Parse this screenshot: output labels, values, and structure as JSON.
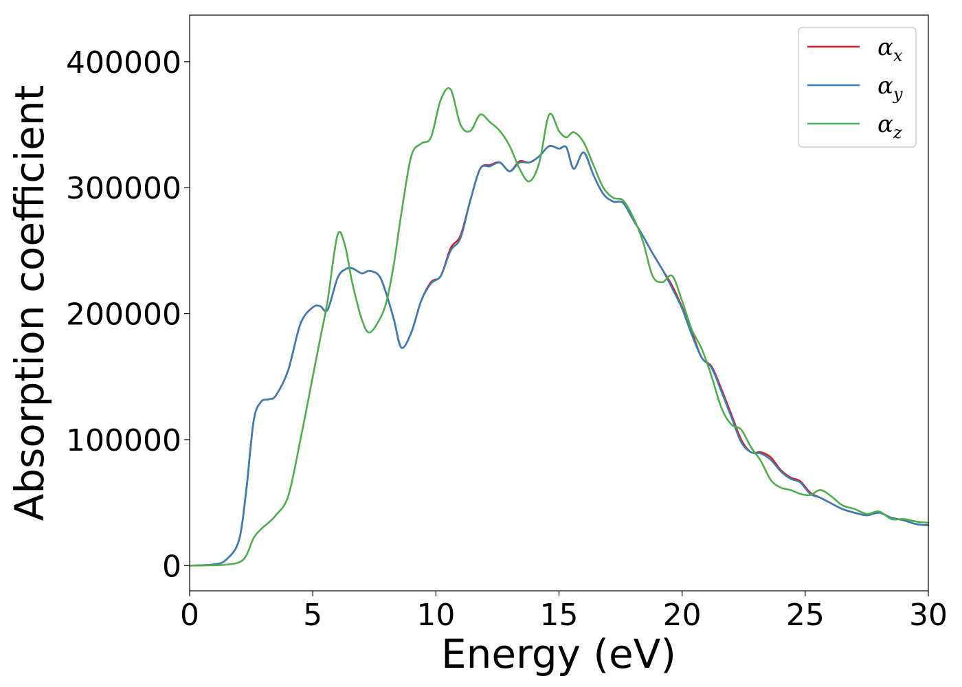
{
  "chart_data": {
    "type": "line",
    "title": "",
    "xlabel": "Energy (eV)",
    "ylabel": "Absorption coefficient",
    "xlim": [
      0,
      30
    ],
    "ylim": [
      -20000,
      437000
    ],
    "xticks": [
      0,
      5,
      10,
      15,
      20,
      25,
      30
    ],
    "yticks": [
      0,
      100000,
      200000,
      300000,
      400000
    ],
    "grid": false,
    "legend_position": "top-right",
    "series": [
      {
        "name": "α_x",
        "symbol": "α",
        "subscript": "x",
        "color": "#e41a1c",
        "x": [
          0,
          1,
          1.5,
          2,
          2.3,
          2.6,
          2.9,
          3.2,
          3.5,
          4,
          4.5,
          5,
          5.3,
          5.6,
          6,
          6.3,
          6.6,
          7,
          7.3,
          7.7,
          8,
          8.3,
          8.6,
          9,
          9.4,
          9.8,
          10.2,
          10.6,
          11,
          11.4,
          11.8,
          12.2,
          12.6,
          13,
          13.4,
          13.8,
          14.2,
          14.6,
          15,
          15.3,
          15.6,
          16,
          16.4,
          16.8,
          17.2,
          17.6,
          18,
          18.4,
          18.8,
          19.2,
          19.6,
          20,
          20.4,
          20.8,
          21.2,
          21.6,
          22,
          22.4,
          22.8,
          23.2,
          23.6,
          24,
          24.4,
          24.8,
          25.2,
          25.6,
          26,
          26.5,
          27,
          27.5,
          28,
          28.5,
          29,
          29.5,
          30
        ],
        "values": [
          0,
          1000,
          5000,
          20000,
          60000,
          115000,
          130000,
          132000,
          135000,
          155000,
          192000,
          205000,
          206000,
          203000,
          228000,
          235000,
          236000,
          232000,
          234000,
          230000,
          215000,
          195000,
          173000,
          185000,
          210000,
          225000,
          230000,
          252000,
          262000,
          290000,
          315000,
          318000,
          320000,
          313000,
          321000,
          320000,
          325000,
          333000,
          331000,
          332000,
          315000,
          328000,
          310000,
          295000,
          289000,
          288000,
          275000,
          262000,
          248000,
          235000,
          222000,
          205000,
          185000,
          165000,
          158000,
          140000,
          120000,
          100000,
          90000,
          90000,
          86000,
          76000,
          70000,
          67000,
          58000,
          54000,
          50000,
          45000,
          42000,
          40000,
          42000,
          38000,
          36000,
          33000,
          32000
        ]
      },
      {
        "name": "α_y",
        "symbol": "α",
        "subscript": "y",
        "color": "#377eb8",
        "x": [
          0,
          1,
          1.5,
          2,
          2.3,
          2.6,
          2.9,
          3.2,
          3.5,
          4,
          4.5,
          5,
          5.3,
          5.6,
          6,
          6.3,
          6.6,
          7,
          7.3,
          7.7,
          8,
          8.3,
          8.6,
          9,
          9.4,
          9.8,
          10.2,
          10.6,
          11,
          11.4,
          11.8,
          12.2,
          12.6,
          13,
          13.4,
          13.8,
          14.2,
          14.6,
          15,
          15.3,
          15.6,
          16,
          16.4,
          16.8,
          17.2,
          17.6,
          18,
          18.4,
          18.8,
          19.2,
          19.6,
          20,
          20.4,
          20.8,
          21.2,
          21.6,
          22,
          22.4,
          22.8,
          23.2,
          23.6,
          24,
          24.4,
          24.8,
          25.2,
          25.6,
          26,
          26.5,
          27,
          27.5,
          28,
          28.5,
          29,
          29.5,
          30
        ],
        "values": [
          0,
          1000,
          5000,
          20000,
          60000,
          115000,
          130000,
          132000,
          135000,
          155000,
          192000,
          205000,
          206000,
          203000,
          228000,
          235000,
          236000,
          232000,
          234000,
          230000,
          215000,
          195000,
          173000,
          185000,
          210000,
          224000,
          230000,
          250000,
          260000,
          290000,
          315000,
          317000,
          320000,
          313000,
          320000,
          320000,
          325000,
          333000,
          331000,
          332000,
          315000,
          328000,
          310000,
          295000,
          289000,
          288000,
          275000,
          262000,
          248000,
          235000,
          220000,
          204000,
          183000,
          165000,
          157000,
          138000,
          118000,
          98000,
          90000,
          89000,
          84000,
          75000,
          69000,
          66000,
          57000,
          54000,
          50000,
          45000,
          42000,
          40000,
          42000,
          38000,
          36000,
          33000,
          32000
        ]
      },
      {
        "name": "α_z",
        "symbol": "α",
        "subscript": "z",
        "color": "#4daf4a",
        "x": [
          0,
          1,
          1.5,
          2,
          2.3,
          2.6,
          2.9,
          3.2,
          3.5,
          4,
          4.5,
          5,
          5.3,
          5.6,
          6,
          6.3,
          6.6,
          7,
          7.3,
          7.7,
          8,
          8.3,
          8.6,
          9,
          9.4,
          9.8,
          10.2,
          10.6,
          11,
          11.4,
          11.8,
          12.2,
          12.6,
          13,
          13.4,
          13.8,
          14.2,
          14.6,
          15,
          15.3,
          15.6,
          16,
          16.4,
          16.8,
          17.2,
          17.6,
          18,
          18.4,
          18.8,
          19.2,
          19.6,
          20,
          20.4,
          20.8,
          21.2,
          21.6,
          22,
          22.4,
          22.8,
          23.2,
          23.6,
          24,
          24.4,
          24.8,
          25.2,
          25.6,
          26,
          26.5,
          27,
          27.5,
          28,
          28.5,
          29,
          29.5,
          30
        ],
        "values": [
          0,
          300,
          800,
          2500,
          8000,
          22000,
          29000,
          34000,
          40000,
          55000,
          100000,
          150000,
          180000,
          210000,
          262000,
          255000,
          225000,
          195000,
          185000,
          195000,
          210000,
          240000,
          280000,
          325000,
          335000,
          340000,
          370000,
          378000,
          350000,
          345000,
          358000,
          352000,
          345000,
          333000,
          315000,
          305000,
          320000,
          358000,
          345000,
          340000,
          344000,
          336000,
          318000,
          300000,
          292000,
          290000,
          277000,
          258000,
          230000,
          225000,
          230000,
          210000,
          187000,
          172000,
          150000,
          125000,
          112000,
          108000,
          94000,
          83000,
          68000,
          62000,
          60000,
          57000,
          56000,
          60000,
          56000,
          48000,
          45000,
          41000,
          43000,
          37000,
          37000,
          35000,
          34000
        ]
      }
    ]
  }
}
